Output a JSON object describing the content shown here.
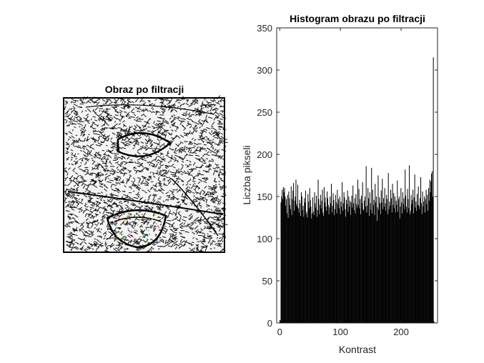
{
  "colors": {
    "background": "#ffffff",
    "axis": "#262626",
    "bars": "#000000",
    "image_frame": "#000000"
  },
  "image_panel": {
    "title": "Obraz po filtracji"
  },
  "chart_data": {
    "type": "bar",
    "title": "Histogram obrazu po filtracji",
    "xlabel": "Kontrast",
    "ylabel": "Liczba pikseli",
    "xlim": [
      -5,
      260
    ],
    "ylim": [
      0,
      350
    ],
    "xticks": [
      0,
      100,
      200
    ],
    "yticks": [
      0,
      50,
      100,
      150,
      200,
      250,
      300,
      350
    ],
    "grid": false,
    "series": [
      {
        "name": "histogram",
        "x_start": 0,
        "x_end": 255,
        "values": [
          0,
          3,
          143,
          150,
          158,
          147,
          161,
          155,
          160,
          150,
          139,
          147,
          130,
          152,
          125,
          156,
          148,
          140,
          135,
          162,
          128,
          147,
          157,
          166,
          133,
          145,
          150,
          170,
          141,
          138,
          164,
          136,
          131,
          146,
          142,
          127,
          155,
          150,
          134,
          139,
          126,
          148,
          143,
          157,
          129,
          132,
          125,
          153,
          144,
          136,
          160,
          146,
          138,
          124,
          130,
          149,
          132,
          128,
          155,
          142,
          137,
          151,
          126,
          134,
          170,
          147,
          129,
          140,
          152,
          136,
          145,
          158,
          131,
          127,
          161,
          143,
          149,
          138,
          133,
          156,
          148,
          140,
          129,
          137,
          150,
          142,
          165,
          131,
          139,
          154,
          146,
          128,
          135,
          152,
          143,
          130,
          158,
          141,
          147,
          136,
          150,
          129,
          144,
          138,
          167,
          133,
          142,
          155,
          149,
          135,
          126,
          146,
          141,
          157,
          132,
          150,
          138,
          145,
          128,
          143,
          151,
          137,
          163,
          142,
          134,
          148,
          130,
          153,
          141,
          137,
          170,
          140,
          159,
          136,
          147,
          129,
          151,
          142,
          167,
          135,
          133,
          145,
          150,
          138,
          186,
          131,
          139,
          160,
          148,
          127,
          155,
          142,
          134,
          184,
          130,
          158,
          140,
          146,
          128,
          165,
          143,
          150,
          121,
          137,
          175,
          134,
          149,
          142,
          129,
          157,
          143,
          171,
          135,
          148,
          138,
          160,
          142,
          133,
          152,
          147,
          129,
          178,
          135,
          144,
          139,
          158,
          148,
          131,
          165,
          140,
          154,
          136,
          150,
          131,
          145,
          140,
          169,
          132,
          147,
          150,
          124,
          138,
          160,
          143,
          130,
          155,
          141,
          148,
          135,
          182,
          151,
          138,
          131,
          159,
          147,
          136,
          187,
          129,
          133,
          152,
          141,
          146,
          158,
          130,
          149,
          176,
          137,
          144,
          133,
          153,
          140,
          162,
          139,
          135,
          148,
          173,
          142,
          129,
          156,
          138,
          144,
          150,
          131,
          147,
          158,
          141,
          152,
          133,
          160,
          145,
          170,
          155,
          168,
          177,
          180,
          150,
          315,
          2,
          0
        ]
      }
    ]
  }
}
